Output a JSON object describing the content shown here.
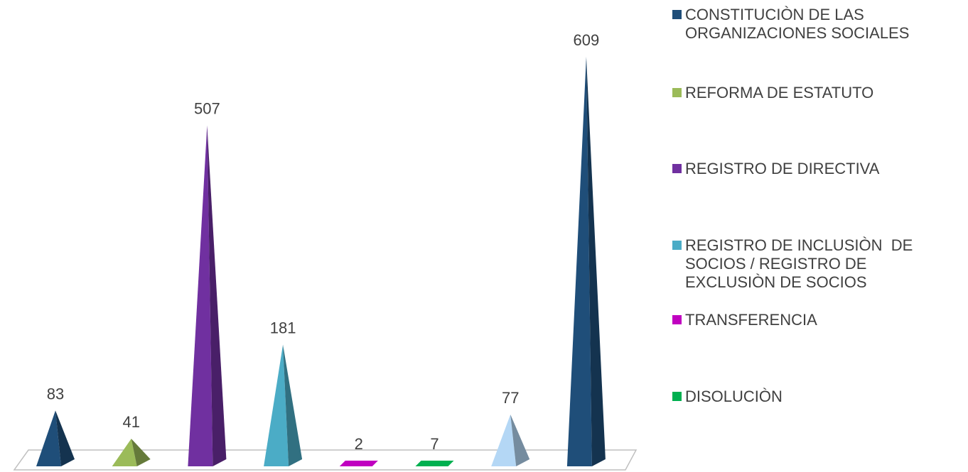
{
  "chart_data": {
    "type": "pyramid",
    "categories": [
      null,
      null,
      null,
      null,
      null,
      null,
      null,
      null
    ],
    "values": [
      83,
      41,
      507,
      181,
      2,
      7,
      77,
      609
    ],
    "colors": [
      "#1f4e79",
      "#9bbb59",
      "#7030a0",
      "#4bacc6",
      "#c000c0",
      "#00b050",
      "#b4d7f5",
      "#1f4e79"
    ],
    "legend": [
      {
        "name": "CONSTITUCIÒN DE LAS ORGANIZACIONES SOCIALES",
        "color": "#1f4e79"
      },
      {
        "name": "REFORMA DE ESTATUTO",
        "color": "#9bbb59"
      },
      {
        "name": "REGISTRO DE DIRECTIVA",
        "color": "#7030a0"
      },
      {
        "name": "REGISTRO DE INCLUSIÒN  DE SOCIOS / REGISTRO DE EXCLUSIÒN DE SOCIOS",
        "color": "#4bacc6"
      },
      {
        "name": "TRANSFERENCIA",
        "color": "#c000c0"
      },
      {
        "name": "DISOLUCIÒN",
        "color": "#00b050"
      }
    ]
  }
}
